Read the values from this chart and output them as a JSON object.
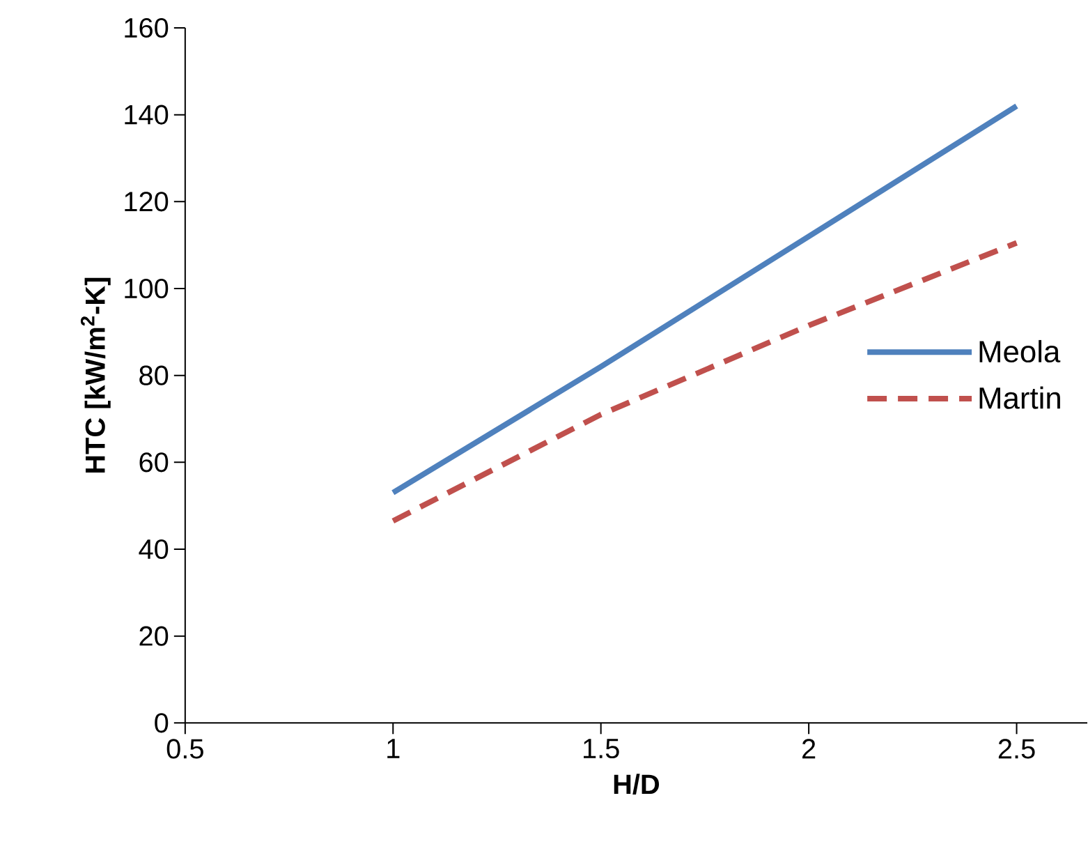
{
  "chart_data": {
    "type": "line",
    "xlabel": "H/D",
    "ylabel": "HTC [kW/m$^{2}$-K]",
    "x": [
      1,
      1.5,
      2,
      2.5
    ],
    "series": [
      {
        "name": "Meola",
        "color": "#4f81bd",
        "line_style": "solid",
        "values": [
          53,
          82,
          112,
          142
        ]
      },
      {
        "name": "Martin",
        "color": "#c0504d",
        "line_style": "dashed",
        "values": [
          46.5,
          71,
          91.5,
          110.5
        ]
      }
    ],
    "xlim": [
      0.5,
      2.67
    ],
    "ylim": [
      0,
      160
    ],
    "xticks": [
      0.5,
      1,
      1.5,
      2,
      2.5
    ],
    "yticks": [
      0,
      20,
      40,
      60,
      80,
      100,
      120,
      140,
      160
    ],
    "grid": false,
    "legend": "right",
    "marker": "none"
  }
}
